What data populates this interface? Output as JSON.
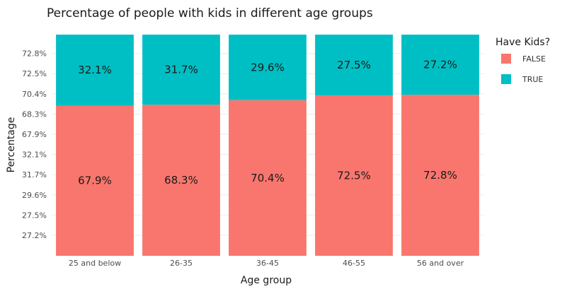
{
  "chart_data": {
    "type": "bar",
    "stacked": true,
    "title": "Percentage of people with kids in different age groups",
    "xlabel": "Age group",
    "ylabel": "Percentage",
    "categories": [
      "25 and below",
      "26-35",
      "36-45",
      "46-55",
      "56 and over"
    ],
    "series": [
      {
        "name": "FALSE",
        "color": "#F8766D",
        "values": [
          67.9,
          68.3,
          70.4,
          72.5,
          72.8
        ],
        "labels": [
          "67.9%",
          "68.3%",
          "70.4%",
          "72.5%",
          "72.8%"
        ]
      },
      {
        "name": "TRUE",
        "color": "#00BFC4",
        "values": [
          32.1,
          31.7,
          29.6,
          27.5,
          27.2
        ],
        "labels": [
          "32.1%",
          "31.7%",
          "29.6%",
          "27.5%",
          "27.2%"
        ]
      }
    ],
    "y_tick_labels": [
      "27.2%",
      "27.5%",
      "29.6%",
      "31.7%",
      "32.1%",
      "67.9%",
      "68.3%",
      "70.4%",
      "72.5%",
      "72.8%"
    ],
    "ylim": [
      0,
      100
    ],
    "grid": true,
    "legend": {
      "title": "Have Kids?",
      "position": "right"
    }
  }
}
